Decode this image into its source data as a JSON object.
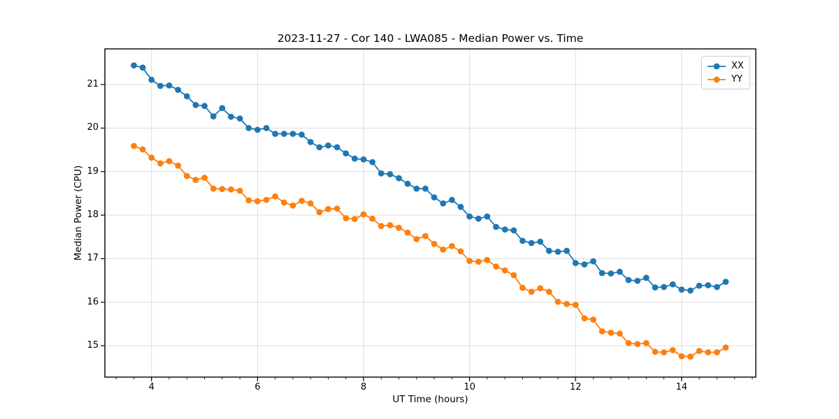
{
  "chart_data": {
    "type": "line",
    "title": "2023-11-27 - Cor 140 - LWA085 - Median Power vs. Time",
    "xlabel": "UT Time (hours)",
    "ylabel": "Median Power (CPU)",
    "xlim": [
      3.12,
      15.4
    ],
    "ylim": [
      14.28,
      21.82
    ],
    "xticks": [
      4,
      6,
      8,
      10,
      12,
      14
    ],
    "yticks": [
      15,
      16,
      17,
      18,
      19,
      20,
      21
    ],
    "x_minor_step": 0.33333,
    "grid": true,
    "grid_color": "#dddddd",
    "spine_color": "#000000",
    "legend_position": "top-right",
    "x": [
      3.667,
      3.833,
      4.0,
      4.167,
      4.333,
      4.5,
      4.667,
      4.833,
      5.0,
      5.167,
      5.333,
      5.5,
      5.667,
      5.833,
      6.0,
      6.167,
      6.333,
      6.5,
      6.667,
      6.833,
      7.0,
      7.167,
      7.333,
      7.5,
      7.667,
      7.833,
      8.0,
      8.167,
      8.333,
      8.5,
      8.667,
      8.833,
      9.0,
      9.167,
      9.333,
      9.5,
      9.667,
      9.833,
      10.0,
      10.167,
      10.333,
      10.5,
      10.667,
      10.833,
      11.0,
      11.167,
      11.333,
      11.5,
      11.667,
      11.833,
      12.0,
      12.167,
      12.333,
      12.5,
      12.667,
      12.833,
      13.0,
      13.167,
      13.333,
      13.5,
      13.667,
      13.833,
      14.0,
      14.167,
      14.333,
      14.5,
      14.667,
      14.833
    ],
    "series": [
      {
        "name": "XX",
        "color": "#1f77b4",
        "values": [
          21.44,
          21.39,
          21.11,
          20.97,
          20.98,
          20.88,
          20.73,
          20.53,
          20.51,
          20.27,
          20.46,
          20.26,
          20.22,
          20.0,
          19.96,
          20.0,
          19.87,
          19.87,
          19.87,
          19.85,
          19.68,
          19.56,
          19.6,
          19.56,
          19.42,
          19.3,
          19.28,
          19.22,
          18.96,
          18.94,
          18.85,
          18.72,
          18.61,
          18.61,
          18.41,
          18.27,
          18.35,
          18.19,
          17.97,
          17.92,
          17.97,
          17.73,
          17.67,
          17.65,
          17.41,
          17.36,
          17.39,
          17.18,
          17.16,
          17.18,
          16.9,
          16.87,
          16.94,
          16.67,
          16.66,
          16.7,
          16.51,
          16.49,
          16.56,
          16.34,
          16.35,
          16.41,
          16.29,
          16.27,
          16.38,
          16.39,
          16.35,
          16.47
        ]
      },
      {
        "name": "YY",
        "color": "#ff7f0e",
        "values": [
          19.59,
          19.51,
          19.32,
          19.19,
          19.24,
          19.14,
          18.9,
          18.81,
          18.86,
          18.61,
          18.6,
          18.59,
          18.56,
          18.34,
          18.32,
          18.35,
          18.43,
          18.29,
          18.22,
          18.33,
          18.27,
          18.07,
          18.14,
          18.15,
          17.93,
          17.91,
          18.02,
          17.92,
          17.75,
          17.77,
          17.71,
          17.6,
          17.45,
          17.52,
          17.34,
          17.21,
          17.29,
          17.17,
          16.95,
          16.93,
          16.97,
          16.82,
          16.73,
          16.62,
          16.33,
          16.24,
          16.32,
          16.24,
          16.01,
          15.96,
          15.94,
          15.63,
          15.6,
          15.33,
          15.3,
          15.28,
          15.06,
          15.04,
          15.06,
          14.86,
          14.85,
          14.9,
          14.76,
          14.75,
          14.88,
          14.85,
          14.85,
          14.96
        ]
      }
    ]
  }
}
